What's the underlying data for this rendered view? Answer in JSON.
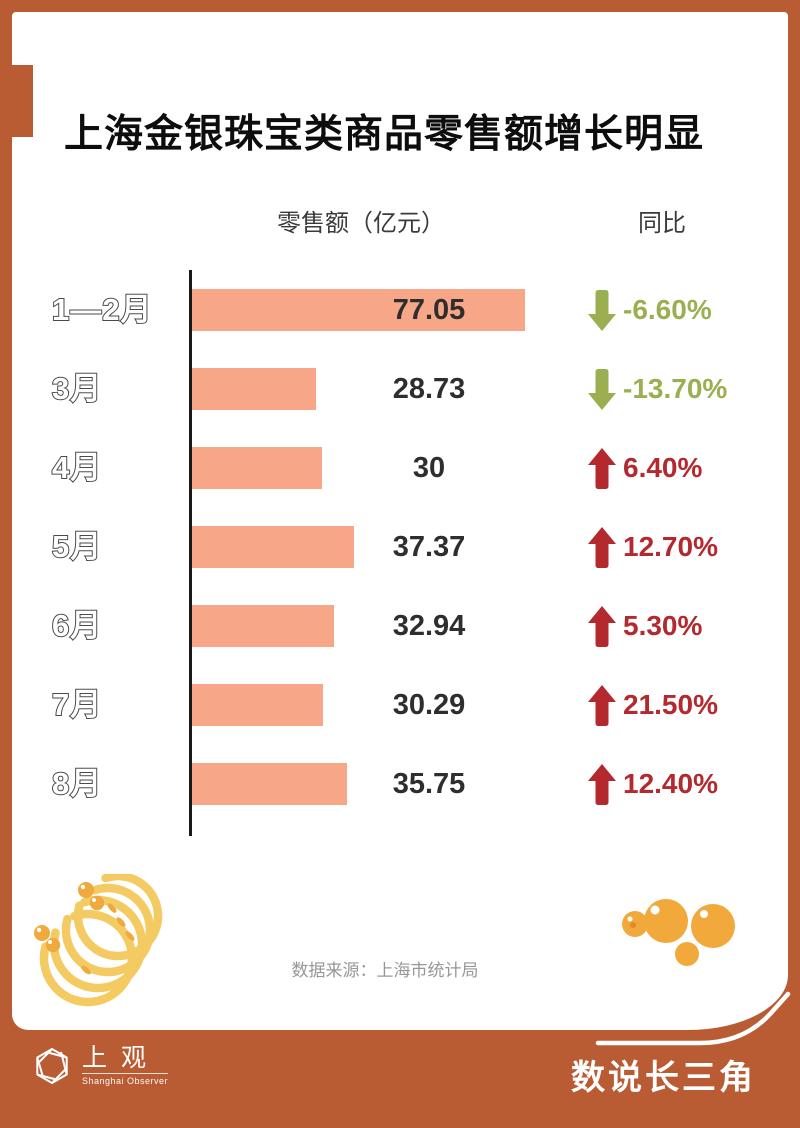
{
  "title": "上海金银珠宝类商品零售额增长明显",
  "headers": {
    "value": "零售额（亿元）",
    "yoy": "同比"
  },
  "source": "数据来源：上海市统计局",
  "footer": {
    "logo_cn": "上观",
    "logo_en": "Shanghai Observer",
    "series_title": "数说长三角"
  },
  "chart_data": {
    "type": "bar",
    "orientation": "horizontal",
    "title": "上海金银珠宝类商品零售额增长明显",
    "categories": [
      "1—2月",
      "3月",
      "4月",
      "5月",
      "6月",
      "7月",
      "8月"
    ],
    "series": [
      {
        "name": "零售额（亿元）",
        "values": [
          77.05,
          28.73,
          30,
          37.37,
          32.94,
          30.29,
          35.75
        ]
      },
      {
        "name": "同比（%）",
        "values": [
          -6.6,
          -13.7,
          6.4,
          12.7,
          5.3,
          21.5,
          12.4
        ]
      }
    ],
    "value_labels": [
      "77.05",
      "28.73",
      "30",
      "37.37",
      "32.94",
      "30.29",
      "35.75"
    ],
    "yoy_labels": [
      "-6.60%",
      "-13.70%",
      "6.40%",
      "12.70%",
      "5.30%",
      "21.50%",
      "12.40%"
    ],
    "yoy_directions": [
      "down",
      "down",
      "up",
      "up",
      "up",
      "up",
      "up"
    ],
    "xlim": [
      0,
      77.05
    ],
    "grid": false,
    "legend": false,
    "colors": {
      "bar": "#F7A687",
      "up": "#B3292E",
      "down": "#9AAF50",
      "frame": "#BA5C33",
      "axis": "#1A1A1A",
      "gold_light": "#F4CB63",
      "gold_dark": "#EFA93D"
    }
  }
}
